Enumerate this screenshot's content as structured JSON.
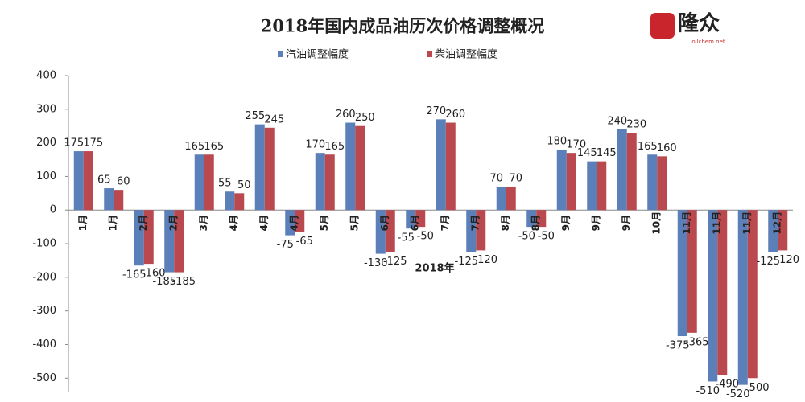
{
  "logo": {
    "name": "隆众",
    "site": "oilchem.net"
  },
  "chart_data": {
    "type": "bar",
    "title": "2018年国内成品油历次价格调整概况",
    "x_label": "2018年",
    "categories": [
      "1月",
      "1月",
      "2月",
      "2月",
      "3月",
      "4月",
      "4月",
      "4月",
      "5月",
      "5月",
      "6月",
      "6月",
      "7月",
      "7月",
      "8月",
      "8月",
      "9月",
      "9月",
      "9月",
      "10月",
      "11月",
      "11月",
      "11月",
      "12月"
    ],
    "series": [
      {
        "name": "汽油调整幅度",
        "color": "#5b7fb8",
        "values": [
          175,
          65,
          -165,
          -185,
          165,
          55,
          255,
          -75,
          170,
          260,
          -130,
          -55,
          270,
          -125,
          70,
          -50,
          180,
          145,
          240,
          165,
          -375,
          -510,
          -520,
          -125
        ]
      },
      {
        "name": "柴油调整幅度",
        "color": "#b9484f",
        "values": [
          175,
          60,
          -160,
          -185,
          165,
          50,
          245,
          -65,
          165,
          250,
          -125,
          -50,
          260,
          -120,
          70,
          -50,
          170,
          145,
          230,
          160,
          -365,
          -490,
          -500,
          -120
        ]
      }
    ],
    "ylim": [
      -540,
      400
    ],
    "yticks": [
      -500,
      -400,
      -300,
      -200,
      -100,
      0,
      100,
      200,
      300,
      400
    ],
    "legend": "top"
  }
}
